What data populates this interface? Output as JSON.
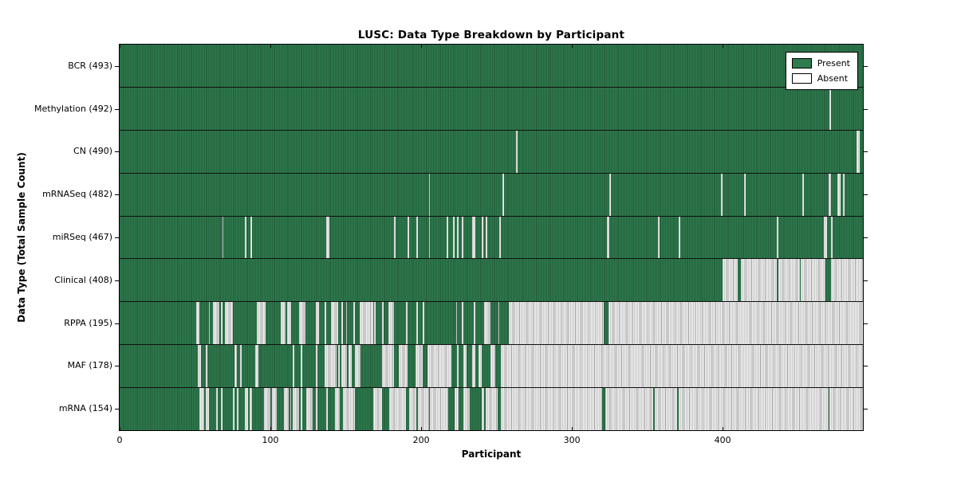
{
  "chart_data": {
    "type": "heatmap",
    "title": "LUSC: Data Type Breakdown by Participant",
    "xlabel": "Participant",
    "ylabel": "Data Type (Total Sample Count)",
    "x_ticks": [
      0,
      100,
      200,
      300,
      400
    ],
    "xlim": [
      0,
      493
    ],
    "total_participants": 493,
    "grid": false,
    "legend_position": "upper right",
    "legend": [
      {
        "label": "Present",
        "color": "#2e7b4e"
      },
      {
        "label": "Absent",
        "color": "#ffffff"
      }
    ],
    "colors": {
      "present": "#2e7b4e",
      "present_stripe": "rgba(0,0,0,0.38)",
      "absent": "#f2f2f2",
      "absent_stripe": "#9f9f9f",
      "frame": "#000000"
    },
    "rows": [
      {
        "label": "BCR",
        "count": 493,
        "display": "BCR (493)",
        "absent_ranges": []
      },
      {
        "label": "Methylation",
        "count": 492,
        "display": "Methylation (492)",
        "absent_ranges": [
          [
            471,
            472
          ]
        ]
      },
      {
        "label": "CN",
        "count": 490,
        "display": "CN (490)",
        "absent_ranges": [
          [
            263,
            264
          ],
          [
            489,
            491
          ]
        ]
      },
      {
        "label": "mRNASeq",
        "count": 482,
        "display": "mRNASeq (482)",
        "absent_ranges": [
          [
            205,
            206
          ],
          [
            254,
            255
          ],
          [
            325,
            326
          ],
          [
            399,
            400
          ],
          [
            414,
            415
          ],
          [
            453,
            454
          ],
          [
            470,
            472
          ],
          [
            476,
            478
          ],
          [
            480,
            481
          ]
        ]
      },
      {
        "label": "miRSeq",
        "count": 467,
        "display": "miRSeq (467)",
        "absent_ranges": [
          [
            68,
            69
          ],
          [
            83,
            84
          ],
          [
            87,
            88
          ],
          [
            137,
            139
          ],
          [
            182,
            183
          ],
          [
            191,
            192
          ],
          [
            197,
            198
          ],
          [
            205,
            206
          ],
          [
            217,
            218
          ],
          [
            221,
            222
          ],
          [
            224,
            225
          ],
          [
            227,
            228
          ],
          [
            234,
            236
          ],
          [
            240,
            241
          ],
          [
            243,
            244
          ],
          [
            252,
            253
          ],
          [
            323,
            325
          ],
          [
            357,
            358
          ],
          [
            371,
            372
          ],
          [
            436,
            437
          ],
          [
            467,
            469
          ],
          [
            472,
            473
          ]
        ]
      },
      {
        "label": "Clinical",
        "count": 408,
        "display": "Clinical (408)",
        "absent_ranges": [
          [
            400,
            410
          ],
          [
            412,
            436
          ],
          [
            437,
            451
          ],
          [
            452,
            468
          ],
          [
            472,
            493
          ]
        ]
      },
      {
        "label": "RPPA",
        "count": 195,
        "display": "RPPA (195)",
        "absent_ranges": [
          [
            51,
            53
          ],
          [
            59,
            60
          ],
          [
            62,
            66
          ],
          [
            67,
            68
          ],
          [
            70,
            75
          ],
          [
            91,
            97
          ],
          [
            107,
            110
          ],
          [
            111,
            114
          ],
          [
            119,
            123
          ],
          [
            130,
            132
          ],
          [
            136,
            137
          ],
          [
            140,
            145
          ],
          [
            147,
            148
          ],
          [
            150,
            151
          ],
          [
            155,
            156
          ],
          [
            159,
            168
          ],
          [
            169,
            170
          ],
          [
            174,
            175
          ],
          [
            178,
            182
          ],
          [
            190,
            191
          ],
          [
            197,
            198
          ],
          [
            201,
            202
          ],
          [
            223,
            224
          ],
          [
            227,
            228
          ],
          [
            235,
            236
          ],
          [
            242,
            246
          ],
          [
            251,
            252
          ],
          [
            258,
            321
          ],
          [
            324,
            493
          ]
        ]
      },
      {
        "label": "MAF",
        "count": 178,
        "display": "MAF (178)",
        "absent_ranges": [
          [
            52,
            54
          ],
          [
            57,
            58
          ],
          [
            76,
            78
          ],
          [
            80,
            81
          ],
          [
            90,
            92
          ],
          [
            115,
            116
          ],
          [
            120,
            121
          ],
          [
            130,
            131
          ],
          [
            136,
            144
          ],
          [
            145,
            146
          ],
          [
            147,
            151
          ],
          [
            152,
            154
          ],
          [
            156,
            160
          ],
          [
            174,
            182
          ],
          [
            185,
            191
          ],
          [
            196,
            201
          ],
          [
            204,
            220
          ],
          [
            224,
            225
          ],
          [
            228,
            230
          ],
          [
            234,
            236
          ],
          [
            238,
            240
          ],
          [
            246,
            249
          ],
          [
            253,
            493
          ]
        ]
      },
      {
        "label": "mRNA",
        "count": 154,
        "display": "mRNA (154)",
        "absent_ranges": [
          [
            53,
            56
          ],
          [
            57,
            59
          ],
          [
            64,
            65
          ],
          [
            67,
            68
          ],
          [
            75,
            76
          ],
          [
            78,
            79
          ],
          [
            83,
            85
          ],
          [
            86,
            88
          ],
          [
            96,
            100
          ],
          [
            101,
            104
          ],
          [
            109,
            112
          ],
          [
            113,
            114
          ],
          [
            115,
            119
          ],
          [
            120,
            121
          ],
          [
            124,
            128
          ],
          [
            130,
            131
          ],
          [
            137,
            138
          ],
          [
            143,
            146
          ],
          [
            148,
            156
          ],
          [
            168,
            174
          ],
          [
            179,
            190
          ],
          [
            192,
            197
          ],
          [
            198,
            205
          ],
          [
            206,
            218
          ],
          [
            222,
            225
          ],
          [
            228,
            232
          ],
          [
            240,
            242
          ],
          [
            243,
            251
          ],
          [
            253,
            320
          ],
          [
            322,
            354
          ],
          [
            355,
            370
          ],
          [
            371,
            470
          ],
          [
            471,
            493
          ]
        ]
      }
    ]
  }
}
